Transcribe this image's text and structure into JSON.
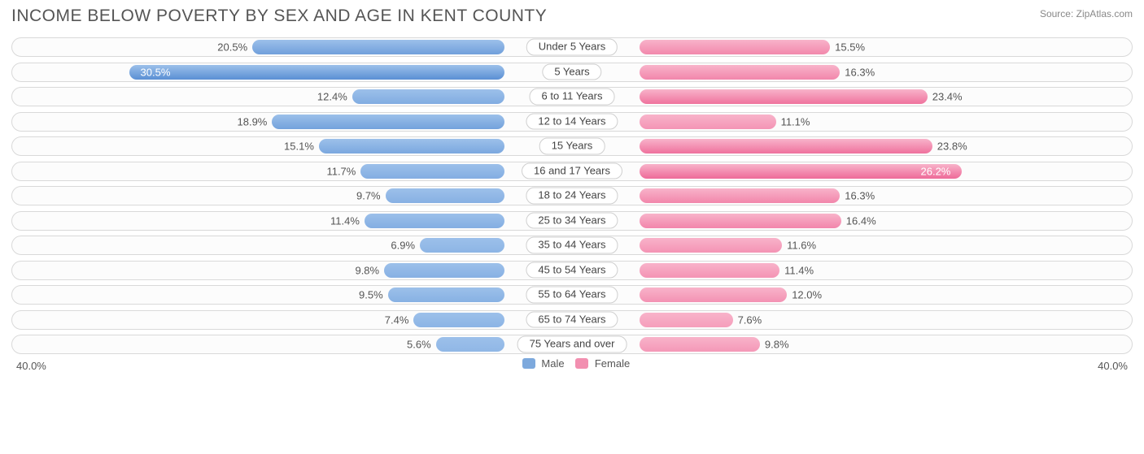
{
  "title": "INCOME BELOW POVERTY BY SEX AND AGE IN KENT COUNTY",
  "source_label": "Source:",
  "source_value": "ZipAtlas.com",
  "chart": {
    "type": "diverging-bar",
    "axis_max": 40.0,
    "axis_label_left": "40.0%",
    "axis_label_right": "40.0%",
    "label_offset_pct": 6,
    "row_border_color": "#d9d9d9",
    "row_bg_color": "#fcfcfc",
    "center_label_border": "#cfcfcf",
    "text_color": "#555555",
    "male": {
      "label": "Male",
      "swatch_color": "#7da9dd",
      "grad_light": "#9cc0ea",
      "grad_dark": "#5a8fd4"
    },
    "female": {
      "label": "Female",
      "swatch_color": "#f28fb0",
      "grad_light": "#f8b3ca",
      "grad_dark": "#ee6a98"
    },
    "rows": [
      {
        "category": "Under 5 Years",
        "male": 20.5,
        "female": 15.5,
        "male_label": "20.5%",
        "female_label": "15.5%"
      },
      {
        "category": "5 Years",
        "male": 30.5,
        "female": 16.3,
        "male_label": "30.5%",
        "female_label": "16.3%"
      },
      {
        "category": "6 to 11 Years",
        "male": 12.4,
        "female": 23.4,
        "male_label": "12.4%",
        "female_label": "23.4%"
      },
      {
        "category": "12 to 14 Years",
        "male": 18.9,
        "female": 11.1,
        "male_label": "18.9%",
        "female_label": "11.1%"
      },
      {
        "category": "15 Years",
        "male": 15.1,
        "female": 23.8,
        "male_label": "15.1%",
        "female_label": "23.8%"
      },
      {
        "category": "16 and 17 Years",
        "male": 11.7,
        "female": 26.2,
        "male_label": "11.7%",
        "female_label": "26.2%"
      },
      {
        "category": "18 to 24 Years",
        "male": 9.7,
        "female": 16.3,
        "male_label": "9.7%",
        "female_label": "16.3%"
      },
      {
        "category": "25 to 34 Years",
        "male": 11.4,
        "female": 16.4,
        "male_label": "11.4%",
        "female_label": "16.4%"
      },
      {
        "category": "35 to 44 Years",
        "male": 6.9,
        "female": 11.6,
        "male_label": "6.9%",
        "female_label": "11.6%"
      },
      {
        "category": "45 to 54 Years",
        "male": 9.8,
        "female": 11.4,
        "male_label": "9.8%",
        "female_label": "11.4%"
      },
      {
        "category": "55 to 64 Years",
        "male": 9.5,
        "female": 12.0,
        "male_label": "9.5%",
        "female_label": "12.0%"
      },
      {
        "category": "65 to 74 Years",
        "male": 7.4,
        "female": 7.6,
        "male_label": "7.4%",
        "female_label": "7.6%"
      },
      {
        "category": "75 Years and over",
        "male": 5.6,
        "female": 9.8,
        "male_label": "5.6%",
        "female_label": "9.8%"
      }
    ]
  }
}
